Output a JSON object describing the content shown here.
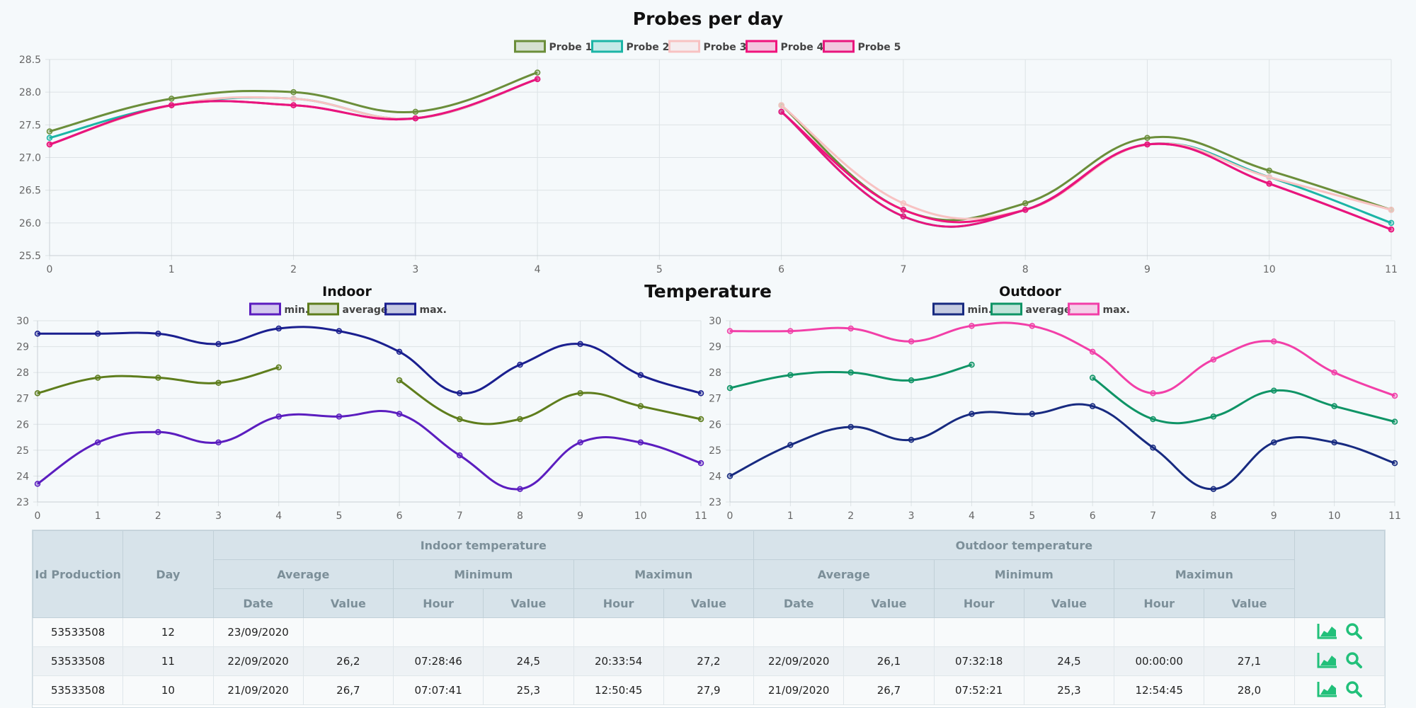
{
  "chart_data": [
    {
      "type": "line",
      "title": "Probes per day",
      "x": [
        0,
        1,
        2,
        3,
        4,
        5,
        6,
        7,
        8,
        9,
        10,
        11
      ],
      "ylim": [
        25.5,
        28.5
      ],
      "yticks": [
        25.5,
        26.0,
        26.5,
        27.0,
        27.5,
        28.0,
        28.5
      ],
      "grid": true,
      "legend_position": "top",
      "series": [
        {
          "name": "Probe 1",
          "color": "#6b8e3a",
          "values": [
            27.4,
            27.9,
            28.0,
            27.7,
            28.3,
            null,
            27.8,
            26.2,
            26.3,
            27.3,
            26.8,
            26.2
          ]
        },
        {
          "name": "Probe 2",
          "color": "#1cb5a6",
          "values": [
            27.3,
            27.8,
            27.9,
            27.6,
            28.2,
            null,
            27.7,
            26.1,
            26.2,
            27.2,
            26.7,
            26.0
          ]
        },
        {
          "name": "Probe 3",
          "color": "#f8c2c2",
          "values": [
            27.2,
            27.8,
            27.9,
            27.6,
            28.2,
            null,
            27.8,
            26.3,
            26.2,
            27.2,
            26.7,
            26.2
          ]
        },
        {
          "name": "Probe 4",
          "color": "#f0147c",
          "values": [
            27.2,
            27.8,
            27.8,
            27.6,
            28.2,
            null,
            27.7,
            26.2,
            26.2,
            27.2,
            26.6,
            25.9
          ]
        },
        {
          "name": "Probe 5",
          "color": "#e8157d",
          "values": [
            27.2,
            27.8,
            27.8,
            27.6,
            28.2,
            null,
            27.7,
            26.1,
            26.2,
            27.2,
            26.6,
            25.9
          ]
        }
      ]
    },
    {
      "type": "line",
      "title": "Indoor",
      "x": [
        0,
        1,
        2,
        3,
        4,
        5,
        6,
        7,
        8,
        9,
        10,
        11
      ],
      "ylim": [
        23,
        30
      ],
      "yticks": [
        23,
        24,
        25,
        26,
        27,
        28,
        29,
        30
      ],
      "grid": true,
      "legend_position": "top",
      "series": [
        {
          "name": "min.",
          "color": "#5b1dbf",
          "values": [
            23.7,
            25.3,
            25.7,
            25.3,
            26.3,
            26.3,
            26.4,
            24.8,
            23.5,
            25.3,
            25.3,
            24.5
          ]
        },
        {
          "name": "average",
          "color": "#5e7d1c",
          "values": [
            27.2,
            27.8,
            27.8,
            27.6,
            28.2,
            null,
            27.7,
            26.2,
            26.2,
            27.2,
            26.7,
            26.2
          ]
        },
        {
          "name": "max.",
          "color": "#1a1f8f",
          "values": [
            29.5,
            29.5,
            29.5,
            29.1,
            29.7,
            29.6,
            28.8,
            27.2,
            28.3,
            29.1,
            27.9,
            27.2
          ]
        }
      ]
    },
    {
      "type": "line",
      "title": "Outdoor",
      "x": [
        0,
        1,
        2,
        3,
        4,
        5,
        6,
        7,
        8,
        9,
        10,
        11
      ],
      "ylim": [
        23,
        30
      ],
      "yticks": [
        23,
        24,
        25,
        26,
        27,
        28,
        29,
        30
      ],
      "grid": true,
      "legend_position": "top",
      "series": [
        {
          "name": "min.",
          "color": "#172a80",
          "values": [
            24.0,
            25.2,
            25.9,
            25.4,
            26.4,
            26.4,
            26.7,
            25.1,
            23.5,
            25.3,
            25.3,
            24.5
          ]
        },
        {
          "name": "average",
          "color": "#0f9466",
          "values": [
            27.4,
            27.9,
            28.0,
            27.7,
            28.3,
            null,
            27.8,
            26.2,
            26.3,
            27.3,
            26.7,
            26.1
          ]
        },
        {
          "name": "max.",
          "color": "#f23fa8",
          "values": [
            29.6,
            29.6,
            29.7,
            29.2,
            29.8,
            29.8,
            28.8,
            27.2,
            28.5,
            29.2,
            28.0,
            27.1
          ]
        }
      ]
    }
  ],
  "section_title": "Temperature",
  "table": {
    "headers": {
      "id": "Id Production",
      "day": "Day",
      "indoor": "Indoor temperature",
      "outdoor": "Outdoor temperature",
      "average": "Average",
      "minimum": "Minimum",
      "maximum": "Maximun",
      "date": "Date",
      "value": "Value",
      "hour": "Hour"
    },
    "rows": [
      {
        "id": "53533508",
        "day": "12",
        "in_date": "23/09/2020",
        "in_avg": "",
        "in_min_h": "",
        "in_min_v": "",
        "in_max_h": "",
        "in_max_v": "",
        "out_date": "",
        "out_avg": "",
        "out_min_h": "",
        "out_min_v": "",
        "out_max_h": "",
        "out_max_v": ""
      },
      {
        "id": "53533508",
        "day": "11",
        "in_date": "22/09/2020",
        "in_avg": "26,2",
        "in_min_h": "07:28:46",
        "in_min_v": "24,5",
        "in_max_h": "20:33:54",
        "in_max_v": "27,2",
        "out_date": "22/09/2020",
        "out_avg": "26,1",
        "out_min_h": "07:32:18",
        "out_min_v": "24,5",
        "out_max_h": "00:00:00",
        "out_max_v": "27,1"
      },
      {
        "id": "53533508",
        "day": "10",
        "in_date": "21/09/2020",
        "in_avg": "26,7",
        "in_min_h": "07:07:41",
        "in_min_v": "25,3",
        "in_max_h": "12:50:45",
        "in_max_v": "27,9",
        "out_date": "21/09/2020",
        "out_avg": "26,7",
        "out_min_h": "07:52:21",
        "out_min_v": "25,3",
        "out_max_h": "12:54:45",
        "out_max_v": "28,0"
      }
    ],
    "icons": {
      "chart": "area-chart-icon",
      "search": "search-icon",
      "color": "#22c07a"
    }
  }
}
